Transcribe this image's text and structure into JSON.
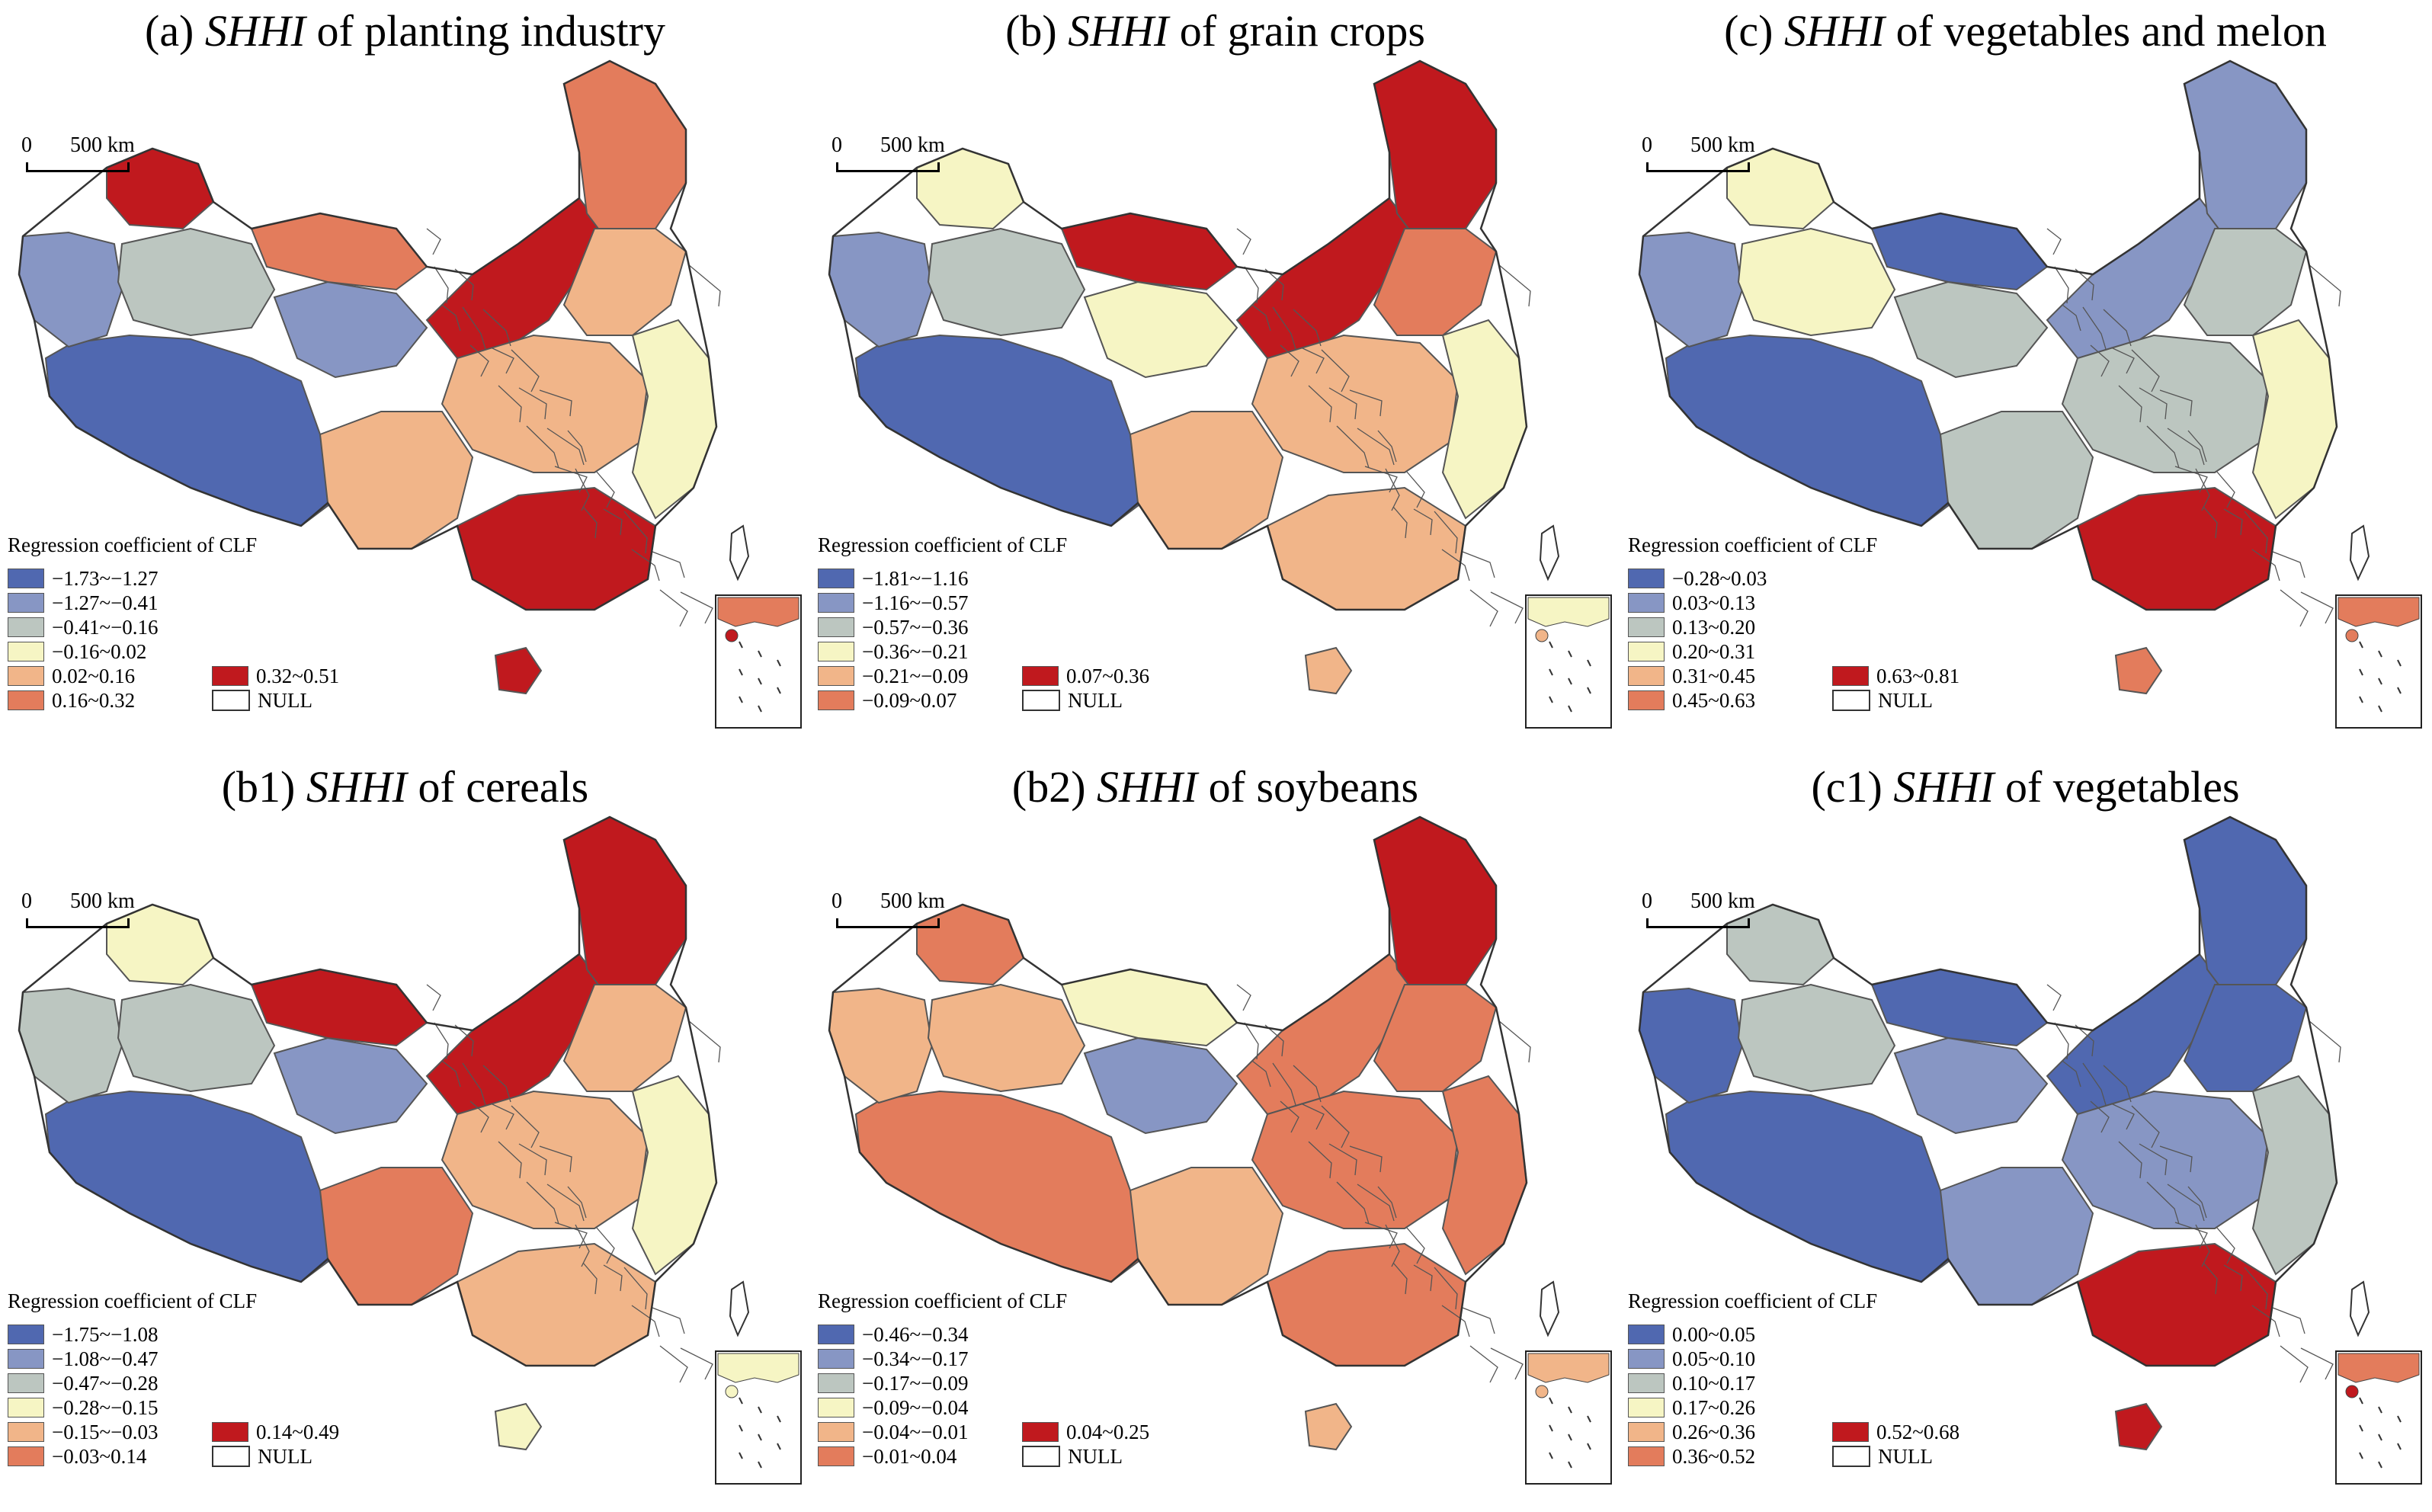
{
  "colors": {
    "c1": "#5068b0",
    "c2": "#8796c4",
    "c3": "#bcc6c0",
    "c4": "#f6f5c4",
    "c5": "#f1b589",
    "c6": "#e37c5c",
    "c7": "#c0191e",
    "null": "#ffffff",
    "boundary": "#555555"
  },
  "scalebar": {
    "zero": "0",
    "distance": "500 km"
  },
  "legend_title": "Regression coefficient of CLF",
  "null_label": "NULL",
  "panels": [
    {
      "label": "(a)",
      "italic": "SHHI",
      "rest": "of planting industry",
      "classes": [
        "−1.73~−1.27",
        "−1.27~−0.41",
        "−0.41~−0.16",
        "−0.16~0.02",
        "0.02~0.16",
        "0.16~0.32",
        "0.32~0.51"
      ]
    },
    {
      "label": "(b)",
      "italic": "SHHI",
      "rest": "of grain crops",
      "classes": [
        "−1.81~−1.16",
        "−1.16~−0.57",
        "−0.57~−0.36",
        "−0.36~−0.21",
        "−0.21~−0.09",
        "−0.09~0.07",
        "0.07~0.36"
      ]
    },
    {
      "label": "(c)",
      "italic": "SHHI",
      "rest": "of vegetables and melon",
      "classes": [
        "−0.28~0.03",
        "0.03~0.13",
        "0.13~0.20",
        "0.20~0.31",
        "0.31~0.45",
        "0.45~0.63",
        "0.63~0.81"
      ]
    },
    {
      "label": "(b1)",
      "italic": "SHHI",
      "rest": "of cereals",
      "classes": [
        "−1.75~−1.08",
        "−1.08~−0.47",
        "−0.47~−0.28",
        "−0.28~−0.15",
        "−0.15~−0.03",
        "−0.03~0.14",
        "0.14~0.49"
      ]
    },
    {
      "label": "(b2)",
      "italic": "SHHI",
      "rest": "of soybeans",
      "classes": [
        "−0.46~−0.34",
        "−0.34~−0.17",
        "−0.17~−0.09",
        "−0.09~−0.04",
        "−0.04~−0.01",
        "−0.01~0.04",
        "0.04~0.25"
      ]
    },
    {
      "label": "(c1)",
      "italic": "SHHI",
      "rest": "of vegetables",
      "classes": [
        "0.00~0.05",
        "0.05~0.10",
        "0.10~0.17",
        "0.17~0.26",
        "0.26~0.36",
        "0.36~0.52",
        "0.52~0.68"
      ]
    }
  ],
  "map_class_levels": [
    {
      "west": 1,
      "northwest": 2,
      "xinjiang_n": 7,
      "xinjiang_c": 3,
      "qinghai": 2,
      "inner_w": 6,
      "inner_mid": 7,
      "northeast": 6,
      "north": 5,
      "central": 5,
      "east": 4,
      "southwest": 5,
      "south": 7,
      "hainan": 7
    },
    {
      "west": 1,
      "northwest": 2,
      "xinjiang_n": 4,
      "xinjiang_c": 3,
      "qinghai": 4,
      "inner_w": 7,
      "inner_mid": 7,
      "northeast": 7,
      "north": 6,
      "central": 5,
      "east": 4,
      "southwest": 5,
      "south": 5,
      "hainan": 5
    },
    {
      "west": 1,
      "northwest": 2,
      "xinjiang_n": 4,
      "xinjiang_c": 4,
      "qinghai": 3,
      "inner_w": 1,
      "inner_mid": 2,
      "northeast": 2,
      "north": 3,
      "central": 3,
      "east": 4,
      "southwest": 3,
      "south": 7,
      "hainan": 6
    },
    {
      "west": 1,
      "northwest": 3,
      "xinjiang_n": 4,
      "xinjiang_c": 3,
      "qinghai": 2,
      "inner_w": 7,
      "inner_mid": 7,
      "northeast": 7,
      "north": 5,
      "central": 5,
      "east": 4,
      "southwest": 6,
      "south": 5,
      "hainan": 4
    },
    {
      "west": 6,
      "northwest": 5,
      "xinjiang_n": 6,
      "xinjiang_c": 5,
      "qinghai": 2,
      "inner_w": 4,
      "inner_mid": 6,
      "northeast": 7,
      "north": 6,
      "central": 6,
      "east": 6,
      "southwest": 5,
      "south": 6,
      "hainan": 5
    },
    {
      "west": 1,
      "northwest": 1,
      "xinjiang_n": 3,
      "xinjiang_c": 3,
      "qinghai": 2,
      "inner_w": 1,
      "inner_mid": 1,
      "northeast": 1,
      "north": 1,
      "central": 2,
      "east": 3,
      "southwest": 2,
      "south": 7,
      "hainan": 7
    }
  ]
}
